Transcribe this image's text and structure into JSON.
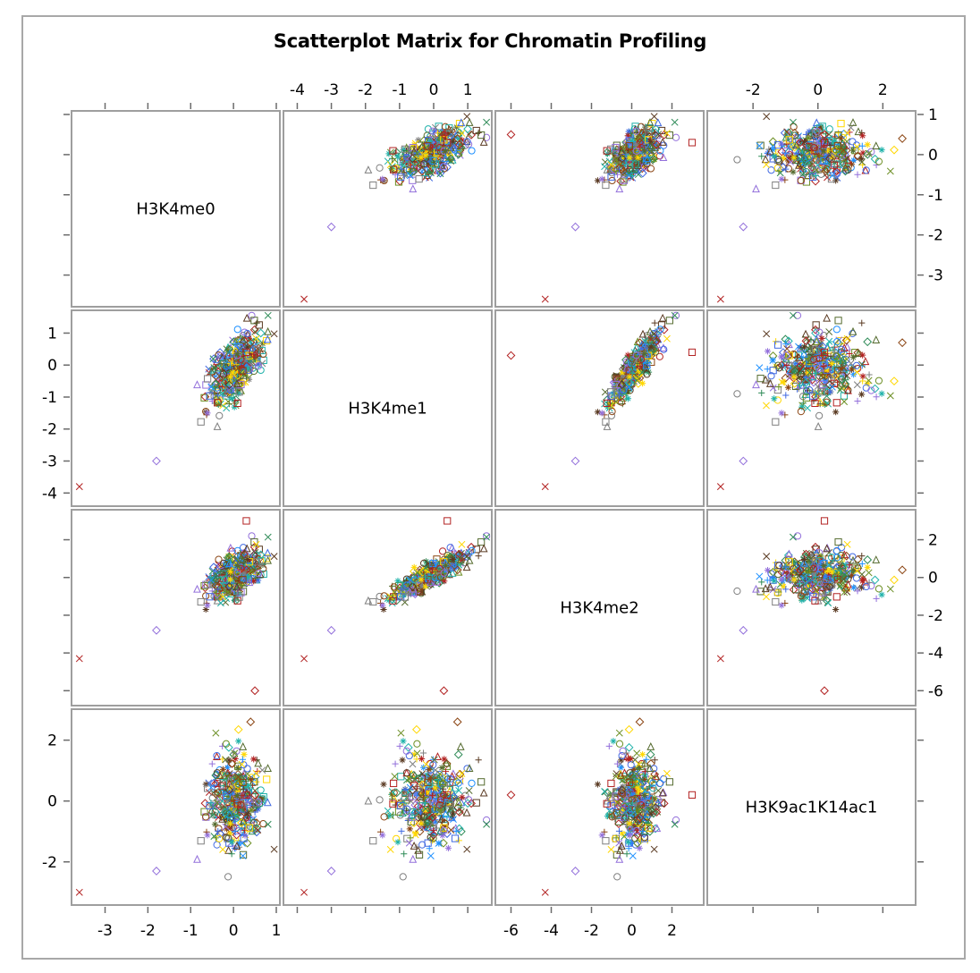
{
  "chart_data": {
    "type": "scatter",
    "subtype": "scatterplot-matrix",
    "title": "Scatterplot Matrix for Chromatin Profiling",
    "variables": [
      {
        "name": "H3K4me0",
        "range": [
          -3.7,
          1.0
        ],
        "ticks": [
          -3,
          -2,
          -1,
          0,
          1
        ],
        "tick_labels": [
          "-3",
          "-2",
          "-1",
          "0",
          "1"
        ]
      },
      {
        "name": "H3K4me1",
        "range": [
          -4.3,
          1.6
        ],
        "ticks": [
          -4,
          -3,
          -2,
          -1,
          0,
          1
        ],
        "tick_labels": [
          "-4",
          "-3",
          "-2",
          "-1",
          "0",
          "1"
        ]
      },
      {
        "name": "H3K4me2",
        "range": [
          -6.6,
          3.4
        ],
        "ticks": [
          -6,
          -4,
          -2,
          0,
          2
        ],
        "tick_labels": [
          "-6",
          "-4",
          "-2",
          "0",
          "2"
        ]
      },
      {
        "name": "H3K9ac1K14ac1",
        "range": [
          -3.3,
          2.9
        ],
        "ticks": [
          -2,
          0,
          2
        ],
        "tick_labels": [
          "-2",
          "0",
          "2"
        ]
      }
    ],
    "axis_label_positions": {
      "top": [
        1,
        3
      ],
      "bottom": [
        0,
        2
      ],
      "left": [
        1,
        3
      ],
      "right": [
        0,
        2
      ]
    },
    "grid": false,
    "legend": "none",
    "marker_colors": [
      "#7f7f7f",
      "#6b8e23",
      "#8b4513",
      "#2e8b57",
      "#4169e1",
      "#9370db",
      "#b22222",
      "#ffd700",
      "#20b2aa",
      "#5a3a22",
      "#1e90ff",
      "#556b2f"
    ],
    "marker_shapes": [
      "circle",
      "plus",
      "x",
      "triangle",
      "square",
      "asterisk",
      "diamond"
    ],
    "n_points": 420,
    "notable_points": [
      {
        "H3K4me0": -3.6,
        "H3K4me1": -3.8,
        "H3K4me2": -4.3,
        "H3K9ac1K14ac1": -3.0,
        "marker": "x",
        "color": "#b22222"
      },
      {
        "H3K4me0": -1.8,
        "H3K4me1": -3.0,
        "H3K4me2": -2.8,
        "H3K9ac1K14ac1": -2.3,
        "marker": "diamond",
        "color": "#9370db"
      },
      {
        "H3K4me0": 0.5,
        "H3K4me1": 0.3,
        "H3K4me2": -6.0,
        "H3K9ac1K14ac1": 0.2,
        "marker": "diamond",
        "color": "#b22222"
      },
      {
        "H3K4me0": 0.3,
        "H3K4me1": 0.4,
        "H3K4me2": 3.0,
        "H3K9ac1K14ac1": 0.2,
        "marker": "square",
        "color": "#b22222"
      },
      {
        "H3K4me0": 0.4,
        "H3K4me1": 0.7,
        "H3K4me2": 0.4,
        "H3K9ac1K14ac1": 2.6,
        "marker": "diamond",
        "color": "#8b4513"
      }
    ],
    "correlations_observed": {
      "H3K4me0~H3K4me1": "moderate positive",
      "H3K4me1~H3K4me2": "strong positive",
      "H3K4me0~H3K9ac1K14ac1": "weak",
      "H3K4me2~H3K9ac1K14ac1": "weak"
    }
  }
}
